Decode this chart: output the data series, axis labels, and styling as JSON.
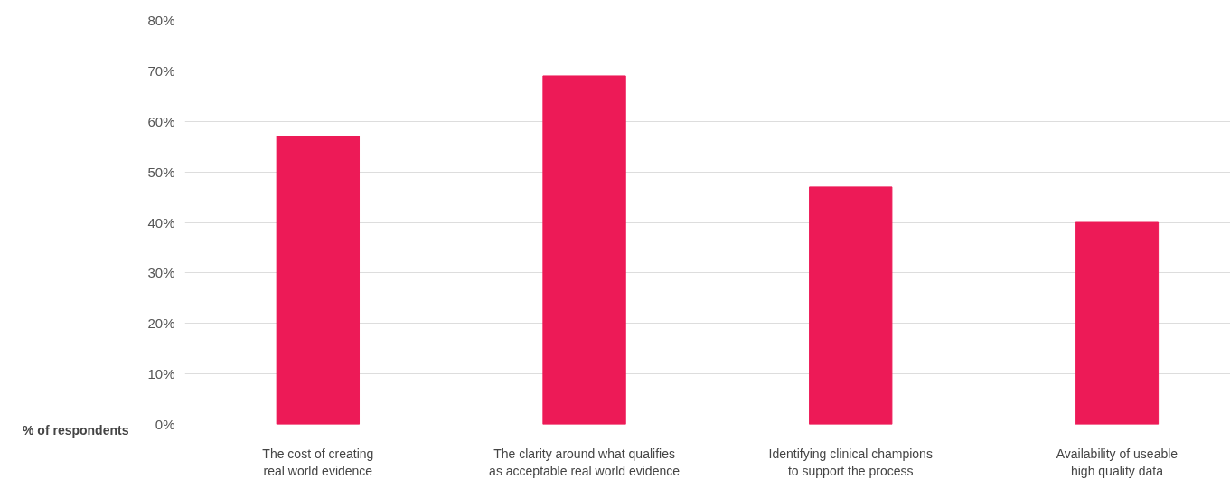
{
  "chart_data": {
    "type": "bar",
    "ylabel": "% of respondents",
    "categories": [
      "The cost of creating\nreal world evidence",
      "The clarity around what qualifies\nas acceptable real world evidence",
      "Identifying clinical champions\nto support the process",
      "Availability of useable\nhigh quality data"
    ],
    "values": [
      57,
      69,
      47,
      40
    ],
    "color": "#ed1a57",
    "ylim": [
      0,
      80
    ],
    "yticks": [
      {
        "value": 0,
        "label": "0%"
      },
      {
        "value": 10,
        "label": "10%"
      },
      {
        "value": 20,
        "label": "20%"
      },
      {
        "value": 30,
        "label": "30%"
      },
      {
        "value": 40,
        "label": "40%"
      },
      {
        "value": 50,
        "label": "50%"
      },
      {
        "value": 60,
        "label": "60%"
      },
      {
        "value": 70,
        "label": "70%"
      },
      {
        "value": 80,
        "label": "80%"
      }
    ],
    "grid": "y"
  }
}
